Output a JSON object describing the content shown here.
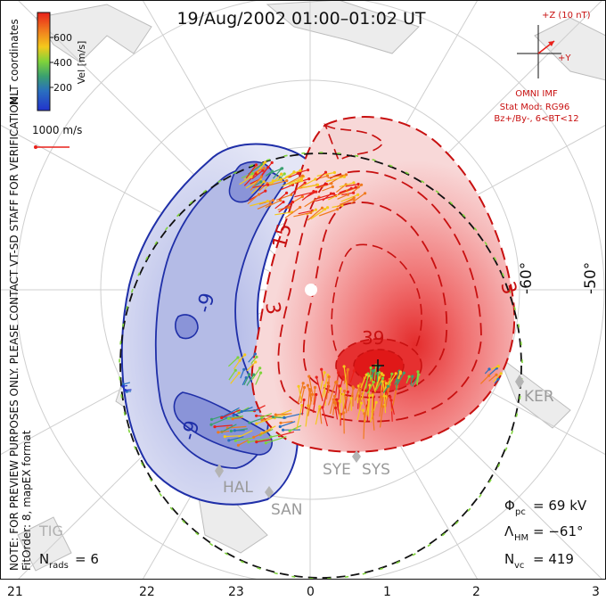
{
  "title": "19/Aug/2002  01:00–01:02 UT",
  "coords_label": "MLT coordinates",
  "colorbar": {
    "label": "Vel [m/s]",
    "ticks": [
      "600",
      "400",
      "200"
    ],
    "colors": [
      "#e8201a",
      "#f07a1e",
      "#f4c81c",
      "#7fd33a",
      "#3aa070",
      "#2a6fbf",
      "#2233cc"
    ]
  },
  "vector_scale": "1000 m/s",
  "notice": "NOTE: FOR PREVIEW PURPOSES ONLY. PLEASE CONTACT VT-SD STAFF FOR VERIFICATION.",
  "fitorder": "FitOrder: 8, mapEX format",
  "imf": {
    "z_label": "+Z (10 nT)",
    "y_label": "+Y",
    "source": "OMNI IMF",
    "stat_mod": "Stat Mod: RG96",
    "bz_by": "Bz+/By-, 6<BT<12"
  },
  "lat_labels": [
    "-60°",
    "-50°"
  ],
  "contour_labels": {
    "neg": [
      "-9",
      "-9"
    ],
    "pos": [
      "3",
      "15",
      "3",
      "39"
    ]
  },
  "stations": [
    "KER",
    "HAL",
    "SAN",
    "SYE",
    "SYS",
    "TIG"
  ],
  "stats": {
    "phi_pc": "Φ",
    "phi_sub": "pc",
    "phi_val": "= 69 kV",
    "lambda": "Λ",
    "lambda_sub": "HM",
    "lambda_val": "= −61°",
    "nvc": "N",
    "nvc_sub": "vc",
    "nvc_val": "= 419",
    "nrads": "N",
    "nrads_sub": "rads",
    "nrads_val": "= 6"
  },
  "mlt_axis": [
    "21",
    "22",
    "23",
    "0",
    "1",
    "2",
    "3"
  ],
  "colors": {
    "neg_contour": "#1f2fa8",
    "pos_contour": "#c81010",
    "neg_fill": "#c8cdea",
    "pos_fill": "#f0a0a0",
    "grid": "#c8c8c8",
    "land": "#b4b4b4"
  }
}
